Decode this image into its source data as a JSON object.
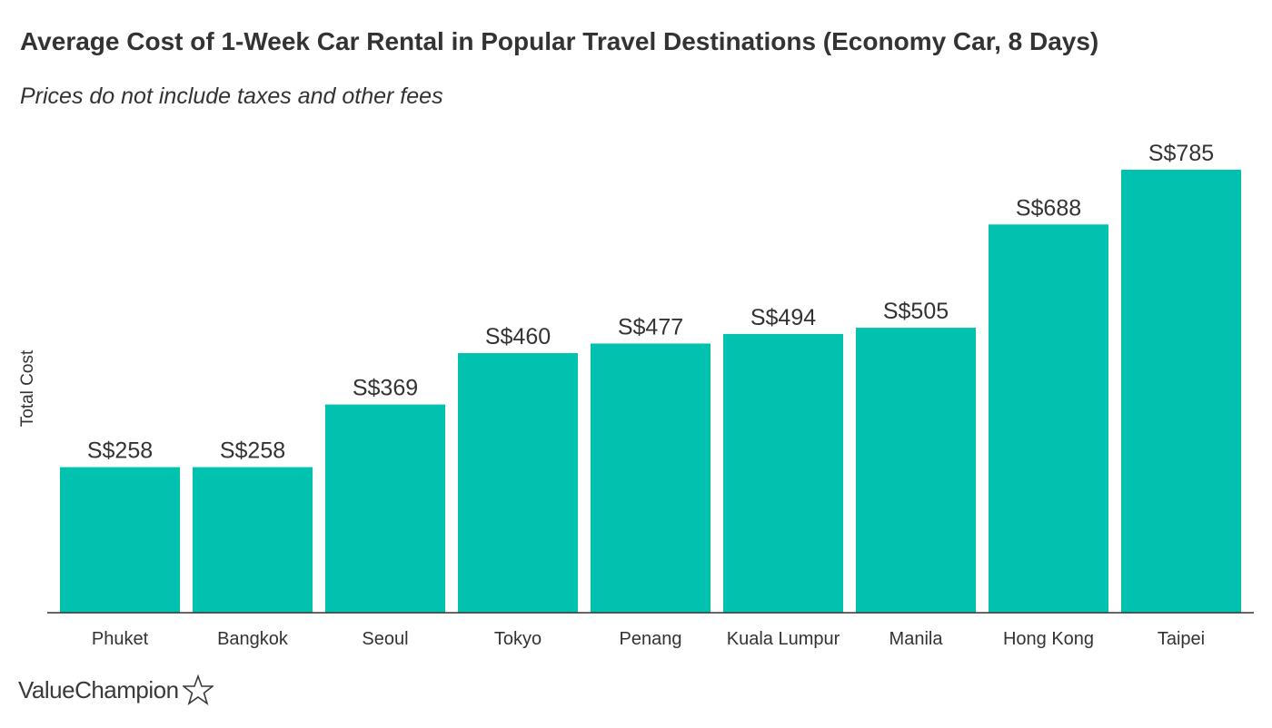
{
  "header": {
    "title": "Average Cost of 1-Week Car Rental in Popular Travel Destinations (Economy Car, 8 Days)",
    "subtitle": "Prices do not include taxes and other fees"
  },
  "brand": {
    "logo_text": "ValueChampion",
    "logo_icon": "star-outline-icon"
  },
  "colors": {
    "bar": "#00C2AE",
    "axis": "#333333",
    "text": "#333333"
  },
  "chart_data": {
    "type": "bar",
    "title": "Average Cost of 1-Week Car Rental in Popular Travel Destinations (Economy Car, 8 Days)",
    "subtitle": "Prices do not include taxes and other fees",
    "xlabel": "",
    "ylabel": "Total Cost",
    "categories": [
      "Phuket",
      "Bangkok",
      "Seoul",
      "Tokyo",
      "Penang",
      "Kuala Lumpur",
      "Manila",
      "Hong Kong",
      "Taipei"
    ],
    "values": [
      258,
      258,
      369,
      460,
      477,
      494,
      505,
      688,
      785
    ],
    "data_labels": [
      "S$258",
      "S$258",
      "S$369",
      "S$460",
      "S$477",
      "S$494",
      "S$505",
      "S$688",
      "S$785"
    ],
    "ylim": [
      0,
      785
    ],
    "grid": false,
    "legend": "none"
  }
}
